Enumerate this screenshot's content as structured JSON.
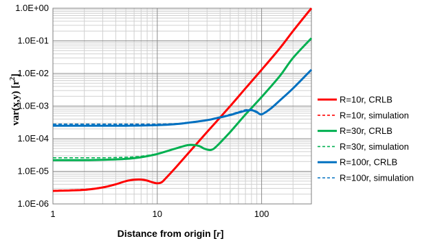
{
  "chart_data": {
    "type": "line",
    "x_scale": "log",
    "y_scale": "log",
    "xlim": [
      1,
      300
    ],
    "ylim": [
      1e-06,
      1
    ],
    "x_ticks": [
      {
        "value": 1,
        "label": "1"
      },
      {
        "value": 10,
        "label": "10"
      },
      {
        "value": 100,
        "label": "100"
      }
    ],
    "y_ticks": [
      {
        "value": 1e-06,
        "label": "1.0E-06"
      },
      {
        "value": 1e-05,
        "label": "1.0E-05"
      },
      {
        "value": 0.0001,
        "label": "1.0E-04"
      },
      {
        "value": 0.001,
        "label": "1.0E-03"
      },
      {
        "value": 0.01,
        "label": "1.0E-02"
      },
      {
        "value": 0.1,
        "label": "1.0E-01"
      },
      {
        "value": 1,
        "label": "1.0E+00"
      }
    ],
    "xlabel": {
      "main": "Distance from origin ",
      "unit_open": "[",
      "unit": "r",
      "unit_close": "]"
    },
    "ylabel": {
      "main": "var(x,y) [r",
      "sup": "2",
      "close": "]"
    },
    "grid": {
      "major": true,
      "minor": true
    },
    "legend_position": "right",
    "series": [
      {
        "name": "R=10r, CRLB",
        "color": "#ff0000",
        "dash": "solid",
        "points": [
          [
            1,
            2.5e-06
          ],
          [
            2,
            2.7e-06
          ],
          [
            3,
            3.2e-06
          ],
          [
            4,
            4e-06
          ],
          [
            5,
            5e-06
          ],
          [
            6,
            5.5e-06
          ],
          [
            7,
            5.6e-06
          ],
          [
            8,
            5.2e-06
          ],
          [
            9,
            4.6e-06
          ],
          [
            10,
            4.3e-06
          ],
          [
            11,
            4.6e-06
          ],
          [
            12,
            6e-06
          ],
          [
            15,
            1.3e-05
          ],
          [
            20,
            3.7e-05
          ],
          [
            30,
            0.00016
          ],
          [
            50,
            0.001
          ],
          [
            70,
            0.0035
          ],
          [
            100,
            0.013
          ],
          [
            150,
            0.06
          ],
          [
            200,
            0.2
          ],
          [
            300,
            1.0
          ]
        ]
      },
      {
        "name": "R=10r, simulation",
        "color": "#ff0000",
        "dash": "dashed",
        "points": [
          [
            1,
            2.6e-06
          ],
          [
            2,
            2.8e-06
          ],
          [
            3,
            3.3e-06
          ],
          [
            4,
            4.1e-06
          ],
          [
            5,
            5e-06
          ],
          [
            6,
            5.5e-06
          ],
          [
            7,
            5.6e-06
          ],
          [
            8,
            5.2e-06
          ],
          [
            9,
            4.6e-06
          ],
          [
            10,
            4.3e-06
          ],
          [
            11,
            4.6e-06
          ],
          [
            12,
            6e-06
          ],
          [
            15,
            1.3e-05
          ],
          [
            20,
            3.7e-05
          ],
          [
            30,
            0.00016
          ],
          [
            50,
            0.001
          ],
          [
            70,
            0.0036
          ],
          [
            100,
            0.0135
          ],
          [
            150,
            0.062
          ],
          [
            200,
            0.2
          ],
          [
            300,
            1.0
          ]
        ]
      },
      {
        "name": "R=30r, CRLB",
        "color": "#00b050",
        "dash": "solid",
        "points": [
          [
            1,
            2.2e-05
          ],
          [
            2,
            2.2e-05
          ],
          [
            3,
            2.25e-05
          ],
          [
            5,
            2.4e-05
          ],
          [
            7,
            2.7e-05
          ],
          [
            10,
            3.4e-05
          ],
          [
            15,
            5e-05
          ],
          [
            20,
            6.4e-05
          ],
          [
            25,
            6e-05
          ],
          [
            28,
            5e-05
          ],
          [
            32,
            4.5e-05
          ],
          [
            35,
            5e-05
          ],
          [
            40,
            7.5e-05
          ],
          [
            50,
            0.00016
          ],
          [
            70,
            0.00055
          ],
          [
            100,
            0.0019
          ],
          [
            150,
            0.0085
          ],
          [
            200,
            0.03
          ],
          [
            300,
            0.12
          ]
        ]
      },
      {
        "name": "R=30r, simulation",
        "color": "#00b050",
        "dash": "dashed",
        "points": [
          [
            1,
            2.6e-05
          ],
          [
            2,
            2.6e-05
          ],
          [
            3,
            2.6e-05
          ],
          [
            5,
            2.7e-05
          ],
          [
            7,
            2.9e-05
          ],
          [
            10,
            3.5e-05
          ],
          [
            15,
            5e-05
          ],
          [
            20,
            6.4e-05
          ],
          [
            25,
            6e-05
          ],
          [
            28,
            5e-05
          ],
          [
            32,
            4.6e-05
          ],
          [
            35,
            5e-05
          ],
          [
            40,
            7.5e-05
          ],
          [
            50,
            0.00016
          ],
          [
            70,
            0.00055
          ],
          [
            100,
            0.0019
          ],
          [
            150,
            0.0085
          ],
          [
            200,
            0.03
          ],
          [
            300,
            0.12
          ]
        ]
      },
      {
        "name": "R=100r, CRLB",
        "color": "#0070c0",
        "dash": "solid",
        "points": [
          [
            1,
            0.00025
          ],
          [
            3,
            0.00025
          ],
          [
            5,
            0.00025
          ],
          [
            10,
            0.00026
          ],
          [
            15,
            0.00028
          ],
          [
            20,
            0.00031
          ],
          [
            30,
            0.00037
          ],
          [
            40,
            0.00045
          ],
          [
            50,
            0.00053
          ],
          [
            60,
            0.00063
          ],
          [
            70,
            0.00072
          ],
          [
            80,
            0.00075
          ],
          [
            90,
            0.00065
          ],
          [
            100,
            0.00056
          ],
          [
            120,
            0.0008
          ],
          [
            150,
            0.0015
          ],
          [
            200,
            0.0035
          ],
          [
            300,
            0.013
          ]
        ]
      },
      {
        "name": "R=100r, simulation",
        "color": "#0070c0",
        "dash": "dashed",
        "points": [
          [
            1,
            0.00028
          ],
          [
            3,
            0.00028
          ],
          [
            5,
            0.00028
          ],
          [
            10,
            0.00028
          ],
          [
            15,
            0.00029
          ],
          [
            20,
            0.00032
          ],
          [
            30,
            0.00038
          ],
          [
            40,
            0.00047
          ],
          [
            50,
            0.00056
          ],
          [
            60,
            0.00067
          ],
          [
            70,
            0.00077
          ],
          [
            80,
            0.00079
          ],
          [
            90,
            0.00069
          ],
          [
            100,
            0.00058
          ],
          [
            120,
            0.00082
          ],
          [
            150,
            0.0015
          ],
          [
            200,
            0.0035
          ],
          [
            300,
            0.013
          ]
        ]
      }
    ]
  }
}
